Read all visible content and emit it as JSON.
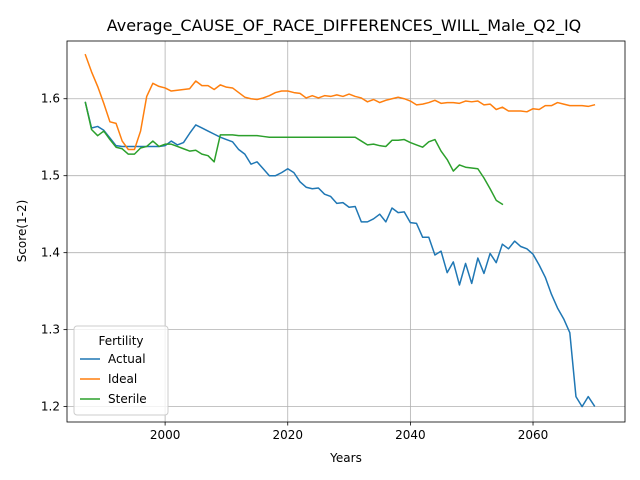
{
  "chart_data": {
    "type": "line",
    "title": "Average_CAUSE_OF_RACE_DIFFERENCES_WILL_Male_Q2_IQ",
    "xlabel": "Years",
    "ylabel": "Score(1-2)",
    "xlim": [
      1984,
      2075
    ],
    "ylim": [
      1.18,
      1.675
    ],
    "xticks": [
      2000,
      2020,
      2040,
      2060
    ],
    "yticks": [
      1.2,
      1.3,
      1.4,
      1.5,
      1.6
    ],
    "xtick_labels": [
      "2000",
      "2020",
      "2040",
      "2060"
    ],
    "ytick_labels": [
      "1.2",
      "1.3",
      "1.4",
      "1.5",
      "1.6"
    ],
    "grid": true,
    "legend": {
      "title": "Fertility",
      "placement": "lower-left"
    },
    "series": [
      {
        "name": "Actual",
        "color": "#1f77b4",
        "x": [
          1987,
          1988,
          1989,
          1990,
          1991,
          1992,
          1993,
          1994,
          1995,
          1996,
          1997,
          1998,
          1999,
          2000,
          2001,
          2002,
          2003,
          2004,
          2005,
          2006,
          2007,
          2008,
          2009,
          2010,
          2011,
          2012,
          2013,
          2014,
          2015,
          2016,
          2017,
          2018,
          2019,
          2020,
          2021,
          2022,
          2023,
          2024,
          2025,
          2026,
          2027,
          2028,
          2029,
          2030,
          2031,
          2032,
          2033,
          2034,
          2035,
          2036,
          2037,
          2038,
          2039,
          2040,
          2041,
          2042,
          2043,
          2044,
          2045,
          2046,
          2047,
          2048,
          2049,
          2050,
          2051,
          2052,
          2053,
          2054,
          2055,
          2056,
          2057,
          2058,
          2059,
          2060,
          2061,
          2062,
          2063,
          2064,
          2065,
          2066,
          2067,
          2068,
          2069,
          2070
        ],
        "values": [
          1.595,
          1.562,
          1.564,
          1.559,
          1.549,
          1.539,
          1.538,
          1.538,
          1.538,
          1.538,
          1.538,
          1.538,
          1.538,
          1.539,
          1.545,
          1.54,
          1.543,
          1.555,
          1.566,
          1.562,
          1.558,
          1.554,
          1.55,
          1.547,
          1.544,
          1.534,
          1.528,
          1.515,
          1.518,
          1.509,
          1.5,
          1.5,
          1.504,
          1.509,
          1.504,
          1.492,
          1.485,
          1.483,
          1.484,
          1.476,
          1.473,
          1.464,
          1.465,
          1.459,
          1.46,
          1.44,
          1.44,
          1.444,
          1.45,
          1.44,
          1.458,
          1.452,
          1.453,
          1.439,
          1.438,
          1.42,
          1.42,
          1.397,
          1.402,
          1.374,
          1.388,
          1.358,
          1.386,
          1.36,
          1.393,
          1.373,
          1.399,
          1.387,
          1.411,
          1.405,
          1.415,
          1.408,
          1.405,
          1.398,
          1.384,
          1.368,
          1.346,
          1.328,
          1.314,
          1.296,
          1.213,
          1.2,
          1.213,
          1.201
        ]
      },
      {
        "name": "Ideal",
        "color": "#ff7f0e",
        "x": [
          1987,
          1988,
          1989,
          1990,
          1991,
          1992,
          1993,
          1994,
          1995,
          1996,
          1997,
          1998,
          1999,
          2000,
          2001,
          2002,
          2003,
          2004,
          2005,
          2006,
          2007,
          2008,
          2009,
          2010,
          2011,
          2012,
          2013,
          2014,
          2015,
          2016,
          2017,
          2018,
          2019,
          2020,
          2021,
          2022,
          2023,
          2024,
          2025,
          2026,
          2027,
          2028,
          2029,
          2030,
          2031,
          2032,
          2033,
          2034,
          2035,
          2036,
          2037,
          2038,
          2039,
          2040,
          2041,
          2042,
          2043,
          2044,
          2045,
          2046,
          2047,
          2048,
          2049,
          2050,
          2051,
          2052,
          2053,
          2054,
          2055,
          2056,
          2057,
          2058,
          2059,
          2060,
          2061,
          2062,
          2063,
          2064,
          2065,
          2066,
          2067,
          2068,
          2069,
          2070
        ],
        "values": [
          1.657,
          1.635,
          1.616,
          1.594,
          1.57,
          1.568,
          1.545,
          1.534,
          1.534,
          1.558,
          1.603,
          1.62,
          1.616,
          1.614,
          1.61,
          1.611,
          1.612,
          1.613,
          1.623,
          1.617,
          1.617,
          1.612,
          1.618,
          1.615,
          1.614,
          1.608,
          1.602,
          1.6,
          1.599,
          1.601,
          1.604,
          1.608,
          1.61,
          1.61,
          1.608,
          1.607,
          1.601,
          1.604,
          1.601,
          1.604,
          1.603,
          1.605,
          1.603,
          1.606,
          1.603,
          1.601,
          1.596,
          1.599,
          1.595,
          1.598,
          1.6,
          1.602,
          1.6,
          1.597,
          1.592,
          1.593,
          1.595,
          1.598,
          1.594,
          1.595,
          1.595,
          1.594,
          1.597,
          1.596,
          1.597,
          1.592,
          1.593,
          1.586,
          1.589,
          1.584,
          1.584,
          1.584,
          1.583,
          1.587,
          1.586,
          1.591,
          1.591,
          1.595,
          1.593,
          1.591,
          1.591,
          1.591,
          1.59,
          1.592
        ]
      },
      {
        "name": "Sterile",
        "color": "#2ca02c",
        "x": [
          1987,
          1988,
          1989,
          1990,
          1991,
          1992,
          1993,
          1994,
          1995,
          1996,
          1997,
          1998,
          1999,
          2000,
          2001,
          2002,
          2003,
          2004,
          2005,
          2006,
          2007,
          2008,
          2009,
          2010,
          2011,
          2012,
          2013,
          2014,
          2015,
          2016,
          2017,
          2018,
          2019,
          2020,
          2021,
          2022,
          2023,
          2024,
          2025,
          2026,
          2027,
          2028,
          2029,
          2030,
          2031,
          2032,
          2033,
          2034,
          2035,
          2036,
          2037,
          2038,
          2039,
          2040,
          2041,
          2042,
          2043,
          2044,
          2045,
          2046,
          2047,
          2048,
          2049,
          2050,
          2051,
          2052,
          2053,
          2054,
          2055
        ],
        "values": [
          1.595,
          1.56,
          1.552,
          1.558,
          1.547,
          1.537,
          1.535,
          1.528,
          1.528,
          1.536,
          1.538,
          1.545,
          1.538,
          1.541,
          1.541,
          1.538,
          1.535,
          1.532,
          1.533,
          1.528,
          1.526,
          1.518,
          1.553,
          1.553,
          1.553,
          1.552,
          1.552,
          1.552,
          1.552,
          1.551,
          1.55,
          1.55,
          1.55,
          1.55,
          1.55,
          1.55,
          1.55,
          1.55,
          1.55,
          1.55,
          1.55,
          1.55,
          1.55,
          1.55,
          1.55,
          1.545,
          1.54,
          1.541,
          1.539,
          1.538,
          1.546,
          1.546,
          1.547,
          1.543,
          1.54,
          1.537,
          1.544,
          1.547,
          1.532,
          1.521,
          1.506,
          1.514,
          1.511,
          1.51,
          1.509,
          1.497,
          1.483,
          1.468,
          1.463
        ]
      }
    ]
  }
}
